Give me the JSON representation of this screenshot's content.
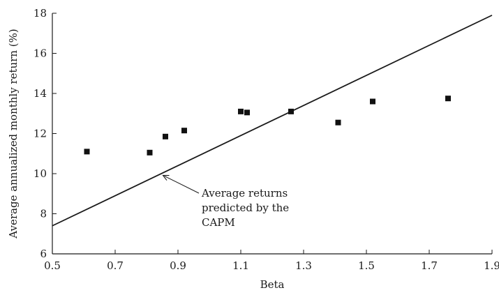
{
  "chart_data": {
    "type": "scatter",
    "title": "",
    "xlabel": "Beta",
    "ylabel": "Average annualized monthly return (%)",
    "xlim": [
      0.5,
      1.9
    ],
    "ylim": [
      6,
      18
    ],
    "xticks": [
      "0.5",
      "0.7",
      "0.9",
      "1.1",
      "1.3",
      "1.5",
      "1.7",
      "1.9"
    ],
    "yticks": [
      "6",
      "8",
      "10",
      "12",
      "14",
      "16",
      "18"
    ],
    "grid": false,
    "series": [
      {
        "marker": "square",
        "points": [
          {
            "x": 0.61,
            "y": 11.1
          },
          {
            "x": 0.81,
            "y": 11.05
          },
          {
            "x": 0.86,
            "y": 11.85
          },
          {
            "x": 0.92,
            "y": 12.15
          },
          {
            "x": 1.1,
            "y": 13.1
          },
          {
            "x": 1.12,
            "y": 13.05
          },
          {
            "x": 1.26,
            "y": 13.1
          },
          {
            "x": 1.41,
            "y": 12.55
          },
          {
            "x": 1.52,
            "y": 13.6
          },
          {
            "x": 1.76,
            "y": 13.75
          }
        ]
      },
      {
        "type": "line",
        "points": [
          {
            "x": 0.5,
            "y": 7.4
          },
          {
            "x": 1.9,
            "y": 17.9
          }
        ]
      }
    ],
    "annotations": [
      {
        "lines": [
          "Average returns",
          "predicted by the",
          "CAPM"
        ],
        "arrow_to": {
          "x": 0.85,
          "y": 9.95
        }
      }
    ]
  }
}
